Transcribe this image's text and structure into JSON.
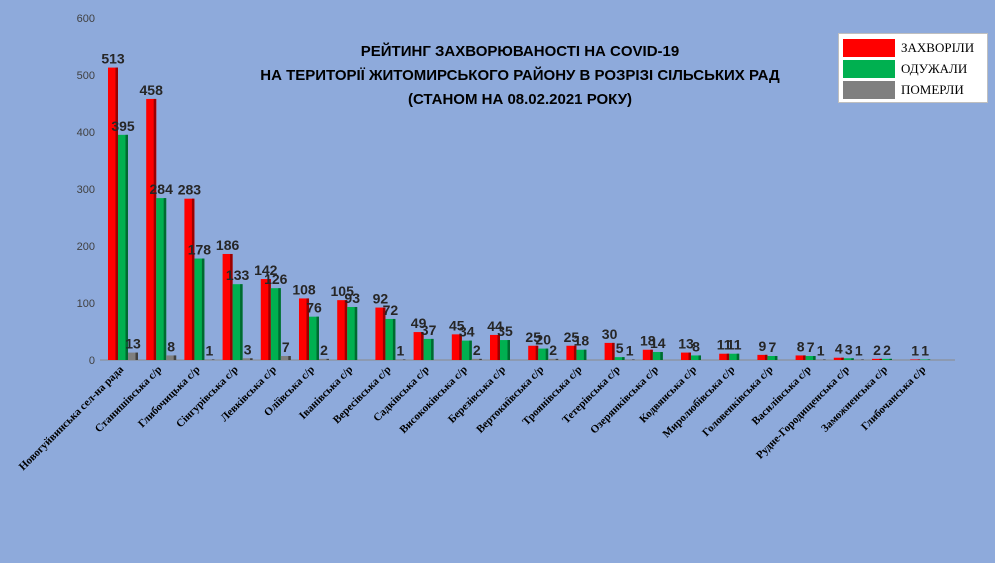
{
  "chart_data": {
    "type": "bar",
    "title_lines": [
      "РЕЙТИНГ ЗАХВОРЮВАНОСТІ НА COVID-19",
      "НА ТЕРИТОРІЇ ЖИТОМИРСЬКОГО РАЙОНУ В РОЗРІЗІ СІЛЬСЬКИХ РАД",
      "(СТАНОМ НА 08.02.2021 РОКУ)"
    ],
    "ylim": [
      0,
      600
    ],
    "yticks": [
      0,
      100,
      200,
      300,
      400,
      500,
      600
    ],
    "grid": false,
    "legend_position": "top-right",
    "categories": [
      "Новогуйвинська сел-на рада",
      "Станишівська с/р",
      "Глибочицька с/р",
      "Сінгурівська с/р",
      "Левківська с/р",
      "Оліївська с/р",
      "Іванівська с/р",
      "Вересівська с/р",
      "Садківська с/р",
      "Висококівська с/р",
      "Березівська с/р",
      "Вертокиївська с/р",
      "Троянівська с/р",
      "Тетерівська с/р",
      "Озерянківська с/р",
      "Кодвянська с/р",
      "Миролюбівська с/р",
      "Головенківська с/р",
      "Василівська с/р",
      "Рудне-Городищенська с/р",
      "Заможненська с/р",
      "Глибочанська с/р"
    ],
    "series": [
      {
        "name": "ЗАХВОРІЛИ",
        "color": "#ff0000",
        "dark": "#9a0000",
        "values": [
          513,
          458,
          283,
          186,
          142,
          108,
          105,
          92,
          49,
          45,
          44,
          25,
          25,
          30,
          18,
          13,
          11,
          9,
          8,
          4,
          2,
          1
        ]
      },
      {
        "name": "ОДУЖАЛИ",
        "color": "#00b050",
        "dark": "#006a30",
        "values": [
          395,
          284,
          178,
          133,
          126,
          76,
          93,
          72,
          37,
          34,
          35,
          20,
          18,
          5,
          14,
          8,
          11,
          7,
          7,
          3,
          2,
          1
        ]
      },
      {
        "name": "ПОМЕРЛИ",
        "color": "#7f7f7f",
        "dark": "#404040",
        "values": [
          13,
          8,
          1,
          3,
          7,
          2,
          null,
          1,
          null,
          2,
          null,
          2,
          null,
          1,
          null,
          null,
          null,
          null,
          1,
          1,
          null,
          null
        ]
      }
    ]
  }
}
